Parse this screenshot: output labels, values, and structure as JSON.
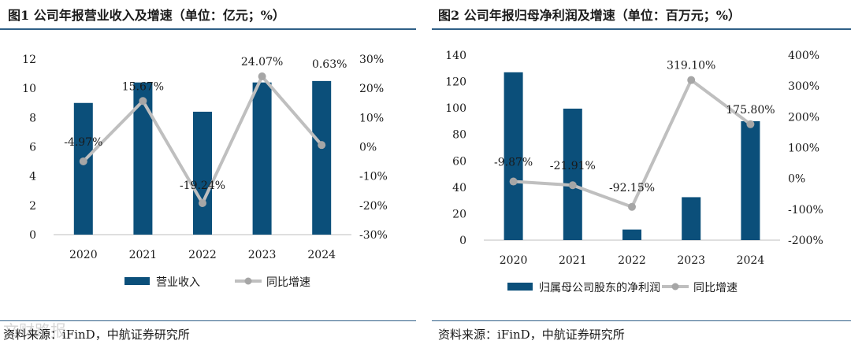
{
  "chart_data": [
    {
      "type": "bar+line",
      "title": "图1 公司年报营业收入及增速（单位：亿元；%）",
      "categories": [
        "2020",
        "2021",
        "2022",
        "2023",
        "2024"
      ],
      "series": [
        {
          "name": "营业收入",
          "type": "bar",
          "axis": "left",
          "values": [
            9.0,
            10.4,
            8.4,
            10.4,
            10.5
          ]
        },
        {
          "name": "同比增速",
          "type": "line",
          "axis": "right",
          "values": [
            -4.97,
            15.67,
            -19.24,
            24.07,
            0.63
          ],
          "labels": [
            "-4.97%",
            "15.67%",
            "-19.24%",
            "24.07%",
            "0.63%"
          ]
        }
      ],
      "y_left": {
        "min": 0,
        "max": 12,
        "ticks": [
          0,
          2,
          4,
          6,
          8,
          10,
          12
        ],
        "tick_labels": [
          "0",
          "2",
          "4",
          "6",
          "8",
          "10",
          "12"
        ]
      },
      "y_right": {
        "min": -30,
        "max": 30,
        "ticks": [
          -30,
          -20,
          -10,
          0,
          10,
          20,
          30
        ],
        "tick_labels": [
          "-30%",
          "-20%",
          "-10%",
          "0%",
          "10%",
          "20%",
          "30%"
        ]
      },
      "legend": [
        "营业收入",
        "同比增速"
      ],
      "source": "资料来源：iFinD，中航证券研究所"
    },
    {
      "type": "bar+line",
      "title": "图2 公司年报归母净利润及增速（单位：百万元；%）",
      "categories": [
        "2020",
        "2021",
        "2022",
        "2023",
        "2024"
      ],
      "series": [
        {
          "name": "归属母公司股东的净利润",
          "type": "bar",
          "axis": "left",
          "values": [
            127,
            99.5,
            8,
            32.5,
            90
          ]
        },
        {
          "name": "同比增速",
          "type": "line",
          "axis": "right",
          "values": [
            -9.87,
            -21.91,
            -92.15,
            319.1,
            175.8
          ],
          "labels": [
            "-9.87%",
            "-21.91%",
            "-92.15%",
            "319.10%",
            "175.80%"
          ]
        }
      ],
      "y_left": {
        "min": 0,
        "max": 140,
        "ticks": [
          0,
          20,
          40,
          60,
          80,
          100,
          120,
          140
        ],
        "tick_labels": [
          "0",
          "20",
          "40",
          "60",
          "80",
          "100",
          "120",
          "140"
        ]
      },
      "y_right": {
        "min": -200,
        "max": 400,
        "ticks": [
          -200,
          -100,
          0,
          100,
          200,
          300,
          400
        ],
        "tick_labels": [
          "-200%",
          "-100%",
          "0%",
          "100%",
          "200%",
          "300%",
          "400%"
        ]
      },
      "legend": [
        "归属母公司股东的净利润",
        "同比增速"
      ],
      "source": "资料来源：iFinD，中航证券研究所"
    }
  ],
  "colors": {
    "bar": "#0b4f7a",
    "line": "#bfbfbf",
    "marker": "#a6a6a6",
    "rule": "#2f5f87"
  },
  "watermark": "文财路报"
}
